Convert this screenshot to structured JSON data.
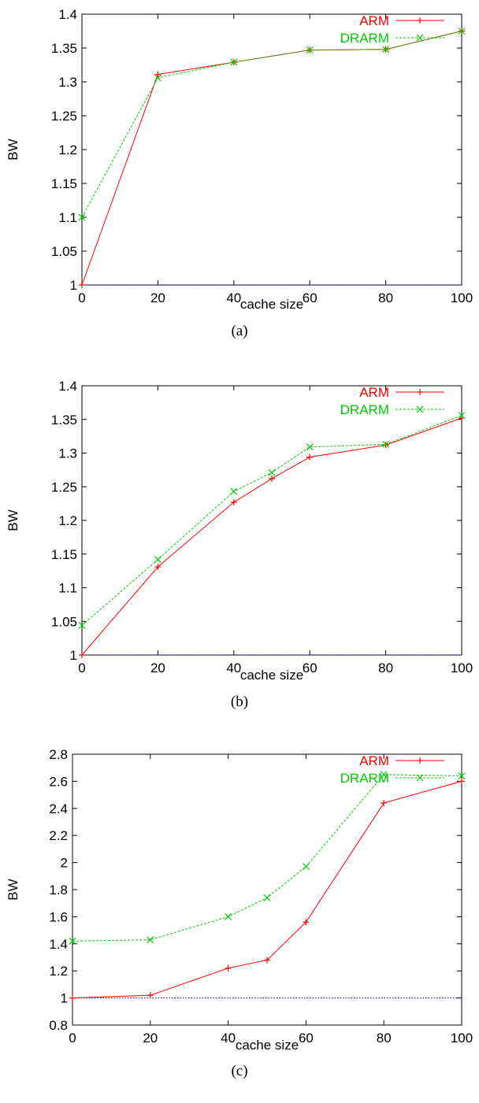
{
  "chart_data": [
    {
      "type": "line",
      "caption": "(a)",
      "xlabel": "cache size",
      "ylabel": "BW",
      "xlim": [
        0,
        100
      ],
      "ylim": [
        1,
        1.4
      ],
      "xticks": [
        0,
        20,
        40,
        60,
        80,
        100
      ],
      "yticks": [
        1,
        1.05,
        1.1,
        1.15,
        1.2,
        1.25,
        1.3,
        1.35,
        1.4
      ],
      "ytick_labels": [
        "1",
        "1.05",
        "1.1",
        "1.15",
        "1.2",
        "1.25",
        "1.3",
        "1.35",
        "1.4"
      ],
      "grid": false,
      "legend": "top-right",
      "baseline": 1,
      "series": [
        {
          "name": "ARM",
          "color": "#ff0000",
          "marker": "plus",
          "x": [
            0,
            20,
            40,
            60,
            80,
            100
          ],
          "y": [
            1.0,
            1.311,
            1.329,
            1.347,
            1.348,
            1.375
          ]
        },
        {
          "name": "DRARM",
          "color": "#00cc00",
          "marker": "cross",
          "x": [
            0,
            20,
            40,
            60,
            80,
            100
          ],
          "y": [
            1.1,
            1.306,
            1.329,
            1.347,
            1.348,
            1.375
          ]
        }
      ]
    },
    {
      "type": "line",
      "caption": "(b)",
      "xlabel": "cache size",
      "ylabel": "BW",
      "xlim": [
        0,
        100
      ],
      "ylim": [
        1,
        1.4
      ],
      "xticks": [
        0,
        20,
        40,
        60,
        80,
        100
      ],
      "yticks": [
        1,
        1.05,
        1.1,
        1.15,
        1.2,
        1.25,
        1.3,
        1.35,
        1.4
      ],
      "ytick_labels": [
        "1",
        "1.05",
        "1.1",
        "1.15",
        "1.2",
        "1.25",
        "1.3",
        "1.35",
        "1.4"
      ],
      "grid": false,
      "legend": "top-right",
      "baseline": 1,
      "series": [
        {
          "name": "ARM",
          "color": "#ff0000",
          "marker": "plus",
          "x": [
            0,
            20,
            40,
            50,
            60,
            80,
            100
          ],
          "y": [
            1.0,
            1.131,
            1.227,
            1.262,
            1.294,
            1.312,
            1.352
          ]
        },
        {
          "name": "DRARM",
          "color": "#00cc00",
          "marker": "cross",
          "x": [
            0,
            20,
            40,
            50,
            60,
            80,
            100
          ],
          "y": [
            1.044,
            1.142,
            1.243,
            1.271,
            1.309,
            1.313,
            1.356
          ]
        }
      ]
    },
    {
      "type": "line",
      "caption": "(c)",
      "xlabel": "cache size",
      "ylabel": "BW",
      "xlim": [
        0,
        100
      ],
      "ylim": [
        0.8,
        2.8
      ],
      "xticks": [
        0,
        20,
        40,
        60,
        80,
        100
      ],
      "yticks": [
        0.8,
        1,
        1.2,
        1.4,
        1.6,
        1.8,
        2,
        2.2,
        2.4,
        2.6,
        2.8
      ],
      "ytick_labels": [
        "0.8",
        "1",
        "1.2",
        "1.4",
        "1.6",
        "1.8",
        "2",
        "2.2",
        "2.4",
        "2.6",
        "2.8"
      ],
      "grid": false,
      "legend": "top-right",
      "baseline": 1,
      "series": [
        {
          "name": "ARM",
          "color": "#ff0000",
          "marker": "plus",
          "x": [
            0,
            20,
            40,
            50,
            60,
            80,
            100
          ],
          "y": [
            1.0,
            1.02,
            1.22,
            1.28,
            1.56,
            2.44,
            2.6
          ]
        },
        {
          "name": "DRARM",
          "color": "#00cc00",
          "marker": "cross",
          "x": [
            0,
            20,
            40,
            50,
            60,
            80,
            100
          ],
          "y": [
            1.42,
            1.43,
            1.6,
            1.74,
            1.97,
            2.65,
            2.64
          ]
        }
      ]
    }
  ]
}
